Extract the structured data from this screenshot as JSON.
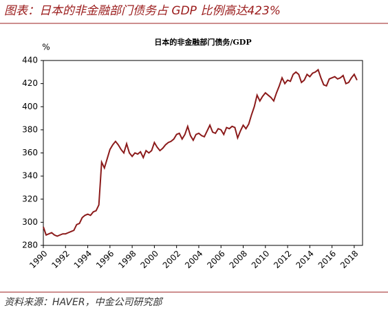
{
  "header": {
    "title": "图表：日本的非金融部门债务占 GDP 比例高达423%"
  },
  "chart_data": {
    "type": "line",
    "title": "日本的非金融部门债务/GDP",
    "y_label": "%",
    "color": "#8b1a1a",
    "xlim": [
      1990,
      2018.75
    ],
    "xticks": [
      1990,
      1992,
      1994,
      1996,
      1998,
      2000,
      2002,
      2004,
      2006,
      2008,
      2010,
      2012,
      2014,
      2016,
      2018
    ],
    "ylim": [
      280,
      440
    ],
    "yticks": [
      280,
      300,
      320,
      340,
      360,
      380,
      400,
      420,
      440
    ],
    "x": [
      1990,
      1990.25,
      1990.5,
      1990.75,
      1991,
      1991.25,
      1991.5,
      1991.75,
      1992,
      1992.25,
      1992.5,
      1992.75,
      1993,
      1993.25,
      1993.5,
      1993.75,
      1994,
      1994.25,
      1994.5,
      1994.75,
      1995,
      1995.25,
      1995.5,
      1995.75,
      1996,
      1996.25,
      1996.5,
      1996.75,
      1997,
      1997.25,
      1997.5,
      1997.75,
      1998,
      1998.25,
      1998.5,
      1998.75,
      1999,
      1999.25,
      1999.5,
      1999.75,
      2000,
      2000.25,
      2000.5,
      2000.75,
      2001,
      2001.25,
      2001.5,
      2001.75,
      2002,
      2002.25,
      2002.5,
      2002.75,
      2003,
      2003.25,
      2003.5,
      2003.75,
      2004,
      2004.25,
      2004.5,
      2004.75,
      2005,
      2005.25,
      2005.5,
      2005.75,
      2006,
      2006.25,
      2006.5,
      2006.75,
      2007,
      2007.25,
      2007.5,
      2007.75,
      2008,
      2008.25,
      2008.5,
      2008.75,
      2009,
      2009.25,
      2009.5,
      2009.75,
      2010,
      2010.25,
      2010.5,
      2010.75,
      2011,
      2011.25,
      2011.5,
      2011.75,
      2012,
      2012.25,
      2012.5,
      2012.75,
      2013,
      2013.25,
      2013.5,
      2013.75,
      2014,
      2014.25,
      2014.5,
      2014.75,
      2015,
      2015.25,
      2015.5,
      2015.75,
      2016,
      2016.25,
      2016.5,
      2016.75,
      2017,
      2017.25,
      2017.5,
      2017.75,
      2018,
      2018.25
    ],
    "values": [
      296,
      289,
      290,
      291,
      289,
      288,
      289,
      290,
      290,
      291,
      292,
      293,
      298,
      299,
      304,
      306,
      307,
      306,
      309,
      310,
      315,
      352,
      347,
      355,
      363,
      367,
      370,
      367,
      363,
      360,
      368,
      360,
      357,
      360,
      359,
      361,
      356,
      362,
      360,
      362,
      369,
      365,
      362,
      364,
      367,
      369,
      370,
      372,
      376,
      377,
      372,
      376,
      383,
      375,
      371,
      376,
      377,
      375,
      374,
      379,
      384,
      378,
      377,
      381,
      380,
      376,
      382,
      381,
      383,
      382,
      373,
      379,
      384,
      381,
      385,
      393,
      400,
      410,
      405,
      409,
      412,
      410,
      408,
      405,
      412,
      418,
      425,
      420,
      423,
      422,
      428,
      430,
      428,
      421,
      423,
      428,
      426,
      429,
      430,
      432,
      425,
      419,
      418,
      424,
      425,
      426,
      424,
      425,
      427,
      420,
      421,
      425,
      428,
      423
    ]
  },
  "footer": {
    "source": "资料来源：HAVER，中金公司研究部"
  }
}
